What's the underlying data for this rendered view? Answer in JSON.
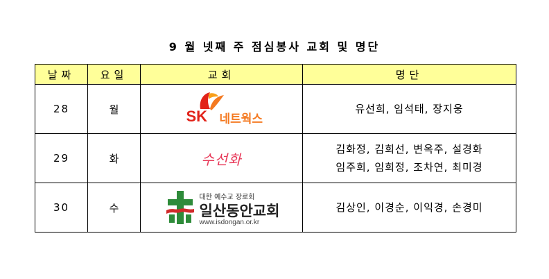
{
  "title": "9 월 넷째 주 점심봉사 교회 및 명단",
  "table": {
    "headers": {
      "date": "날짜",
      "day": "요일",
      "church": "교회",
      "roster": "명단"
    },
    "rows": [
      {
        "date": "28",
        "day": "월",
        "church_logo": {
          "brand": "SK",
          "sub": "네트웍스",
          "icon": "sk-butterfly-logo",
          "colors": {
            "primary": "#e2231a",
            "secondary": "#f47920"
          }
        },
        "names_line1": "유선희, 임석태, 장지웅",
        "names_line2": ""
      },
      {
        "date": "29",
        "day": "화",
        "church_logo": {
          "text": "수선화",
          "colors": {
            "primary": "#e83a5a"
          }
        },
        "names_line1": "김화정, 김희선, 변옥주, 설경화",
        "names_line2": "임주희, 임희정, 조차연, 최미경"
      },
      {
        "date": "30",
        "day": "수",
        "church_logo": {
          "small": "대한 예수교 장로회",
          "big": "일산동안교회",
          "url": "www.isdongan.or.kr",
          "icon": "cross-logo",
          "colors": {
            "cross": "#2e8b3a",
            "accent": "#d12a2a"
          }
        },
        "names_line1": "김상인, 이경순, 이익경, 손경미",
        "names_line2": ""
      }
    ]
  },
  "colors": {
    "header_bg": "#ffff99",
    "border": "#000000"
  }
}
